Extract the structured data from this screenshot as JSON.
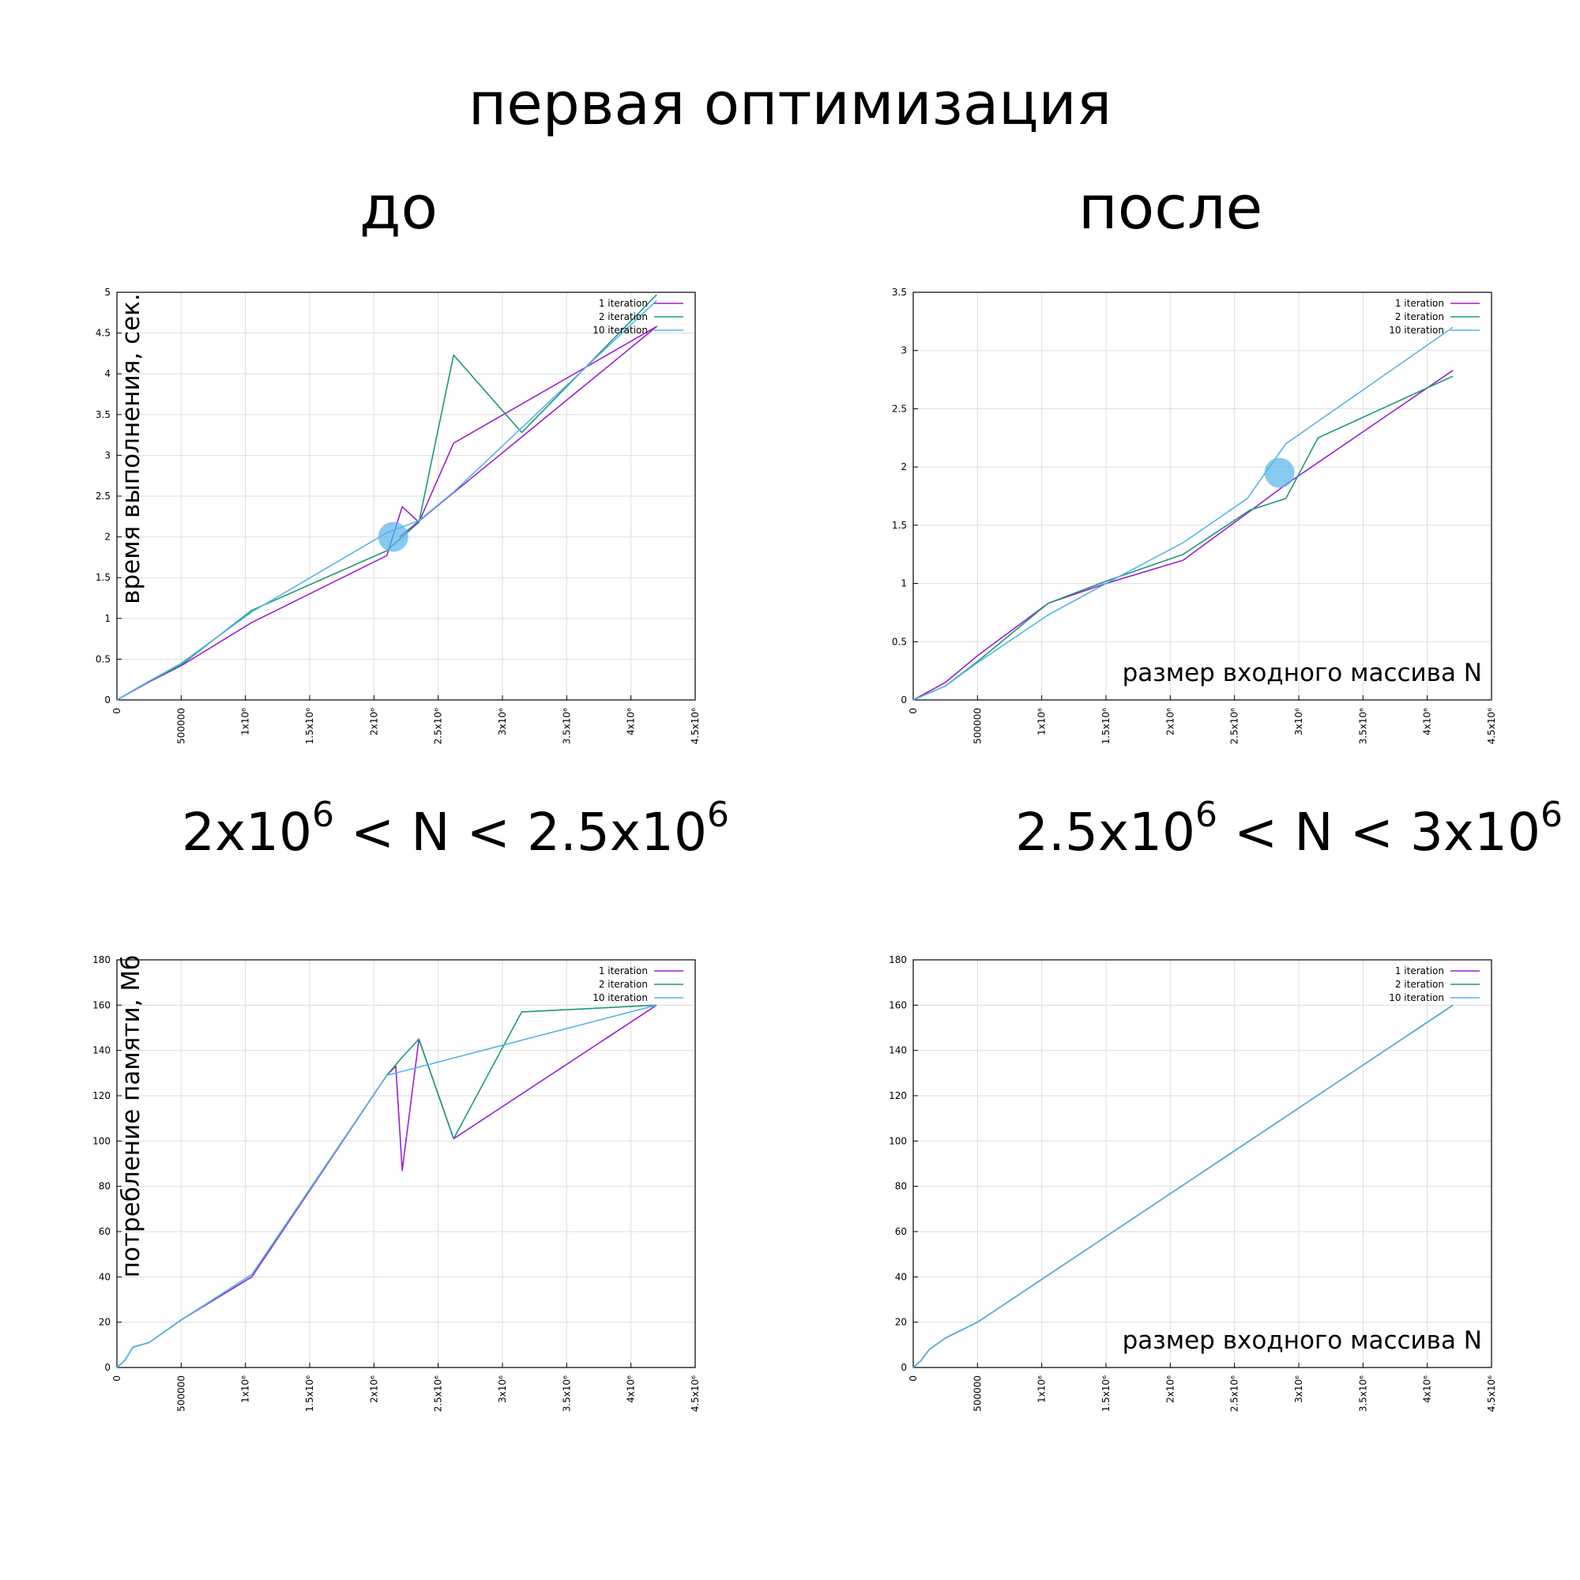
{
  "title": "первая оптимизация",
  "columns": {
    "before": "до",
    "after": "после"
  },
  "ranges": {
    "before": {
      "a": "2x10",
      "a_exp": "6",
      "mid": " < N < 2.5x10",
      "b_exp": "6"
    },
    "after": {
      "a": "2.5x10",
      "a_exp": "6",
      "mid": " < N < 3x10",
      "b_exp": "6"
    }
  },
  "colors": {
    "1 iteration": "#9b1fd6",
    "2 iteration": "#1d9b73",
    "10 iteration": "#56b4e9",
    "highlight": "#56b4e9"
  },
  "chart_data": [
    {
      "id": "time-before",
      "type": "line",
      "ylabel": "время выполнения, сек.",
      "xlabel": "",
      "xlim": [
        0,
        4500000
      ],
      "ylim": [
        0,
        5
      ],
      "xticks": [
        "0",
        "500000",
        "1x10⁶",
        "1.5x10⁶",
        "2x10⁶",
        "2.5x10⁶",
        "3x10⁶",
        "3.5x10⁶",
        "4x10⁶",
        "4.5x10⁶"
      ],
      "yticks": [
        "0",
        "0.5",
        "1",
        "1.5",
        "2",
        "2.5",
        "3",
        "3.5",
        "4",
        "4.5",
        "5"
      ],
      "legend": "top-right",
      "grid": true,
      "highlight": [
        2150000,
        2.0
      ],
      "series": [
        {
          "name": "1 iteration",
          "x": [
            0,
            250000,
            500000,
            1050000,
            2100000,
            2220000,
            2350000,
            2620000,
            4200000,
            2200000
          ],
          "y": [
            0,
            0.22,
            0.42,
            0.95,
            1.77,
            2.37,
            2.18,
            3.15,
            4.58,
            2.0
          ]
        },
        {
          "name": "2 iteration",
          "x": [
            0,
            250000,
            500000,
            1050000,
            2100000,
            2350000,
            2620000,
            3150000,
            4200000
          ],
          "y": [
            0,
            0.23,
            0.43,
            1.1,
            1.83,
            2.18,
            4.23,
            3.28,
            4.97
          ]
        },
        {
          "name": "10 iteration",
          "x": [
            0,
            250000,
            500000,
            1050000,
            2100000,
            2350000,
            2620000,
            4200000
          ],
          "y": [
            0,
            0.23,
            0.45,
            1.08,
            2.05,
            2.2,
            2.55,
            4.9
          ]
        }
      ]
    },
    {
      "id": "time-after",
      "type": "line",
      "ylabel": "",
      "xlabel": "размер входного массива N",
      "xlim": [
        0,
        4500000
      ],
      "ylim": [
        0,
        3.5
      ],
      "xticks": [
        "0",
        "500000",
        "1x10⁶",
        "1.5x10⁶",
        "2x10⁶",
        "2.5x10⁶",
        "3x10⁶",
        "3.5x10⁶",
        "4x10⁶",
        "4.5x10⁶"
      ],
      "yticks": [
        "0",
        "0.5",
        "1",
        "1.5",
        "2",
        "2.5",
        "3",
        "3.5"
      ],
      "legend": "top-right",
      "grid": true,
      "highlight": [
        2850000,
        1.95
      ],
      "series": [
        {
          "name": "1 iteration",
          "x": [
            0,
            250000,
            500000,
            1050000,
            1500000,
            2100000,
            2620000,
            2900000,
            4200000
          ],
          "y": [
            0,
            0.15,
            0.38,
            0.83,
            1.0,
            1.2,
            1.62,
            1.85,
            2.83
          ]
        },
        {
          "name": "2 iteration",
          "x": [
            0,
            250000,
            500000,
            1050000,
            1500000,
            2100000,
            2620000,
            2900000,
            3150000,
            4200000
          ],
          "y": [
            0,
            0.12,
            0.33,
            0.83,
            1.02,
            1.25,
            1.63,
            1.73,
            2.25,
            2.78
          ]
        },
        {
          "name": "10 iteration",
          "x": [
            0,
            250000,
            500000,
            1050000,
            1500000,
            2100000,
            2600000,
            2900000,
            4200000
          ],
          "y": [
            0,
            0.12,
            0.32,
            0.73,
            1.0,
            1.35,
            1.73,
            2.2,
            3.2
          ]
        }
      ]
    },
    {
      "id": "mem-before",
      "type": "line",
      "ylabel": "потребление памяти, Мб",
      "xlabel": "",
      "xlim": [
        0,
        4500000
      ],
      "ylim": [
        0,
        180
      ],
      "xticks": [
        "0",
        "500000",
        "1x10⁶",
        "1.5x10⁶",
        "2x10⁶",
        "2.5x10⁶",
        "3x10⁶",
        "3.5x10⁶",
        "4x10⁶",
        "4.5x10⁶"
      ],
      "yticks": [
        "0",
        "20",
        "40",
        "60",
        "80",
        "100",
        "120",
        "140",
        "160",
        "180"
      ],
      "legend": "top-right",
      "grid": true,
      "series": [
        {
          "name": "1 iteration",
          "x": [
            0,
            60000,
            125000,
            250000,
            500000,
            1050000,
            2100000,
            2170000,
            2220000,
            2350000,
            2620000,
            4200000
          ],
          "y": [
            0,
            3,
            9,
            11,
            21,
            40,
            129,
            133,
            87,
            145,
            101,
            160
          ]
        },
        {
          "name": "2 iteration",
          "x": [
            0,
            60000,
            125000,
            250000,
            500000,
            1050000,
            2100000,
            2220000,
            2350000,
            2620000,
            3150000,
            4200000
          ],
          "y": [
            0,
            3,
            9,
            11,
            21,
            41,
            129,
            137,
            145,
            101,
            157,
            160
          ]
        },
        {
          "name": "10 iteration",
          "x": [
            0,
            60000,
            125000,
            250000,
            500000,
            1050000,
            2100000,
            4200000
          ],
          "y": [
            0,
            3,
            9,
            11,
            21,
            41,
            129,
            160
          ]
        }
      ]
    },
    {
      "id": "mem-after",
      "type": "line",
      "ylabel": "",
      "xlabel": "размер входного массива N",
      "xlim": [
        0,
        4500000
      ],
      "ylim": [
        0,
        180
      ],
      "xticks": [
        "0",
        "500000",
        "1x10⁶",
        "1.5x10⁶",
        "2x10⁶",
        "2.5x10⁶",
        "3x10⁶",
        "3.5x10⁶",
        "4x10⁶",
        "4.5x10⁶"
      ],
      "yticks": [
        "0",
        "20",
        "40",
        "60",
        "80",
        "100",
        "120",
        "140",
        "160",
        "180"
      ],
      "legend": "top-right",
      "grid": true,
      "series": [
        {
          "name": "1 iteration",
          "x": [
            0,
            60000,
            125000,
            250000,
            500000,
            4200000
          ],
          "y": [
            0,
            3,
            8,
            13,
            20,
            160
          ]
        },
        {
          "name": "2 iteration",
          "x": [
            0,
            60000,
            125000,
            250000,
            500000,
            4200000
          ],
          "y": [
            0,
            3,
            8,
            13,
            20,
            160
          ]
        },
        {
          "name": "10 iteration",
          "x": [
            0,
            60000,
            125000,
            250000,
            500000,
            4200000
          ],
          "y": [
            0,
            3,
            8,
            13,
            20,
            160
          ]
        }
      ]
    }
  ]
}
